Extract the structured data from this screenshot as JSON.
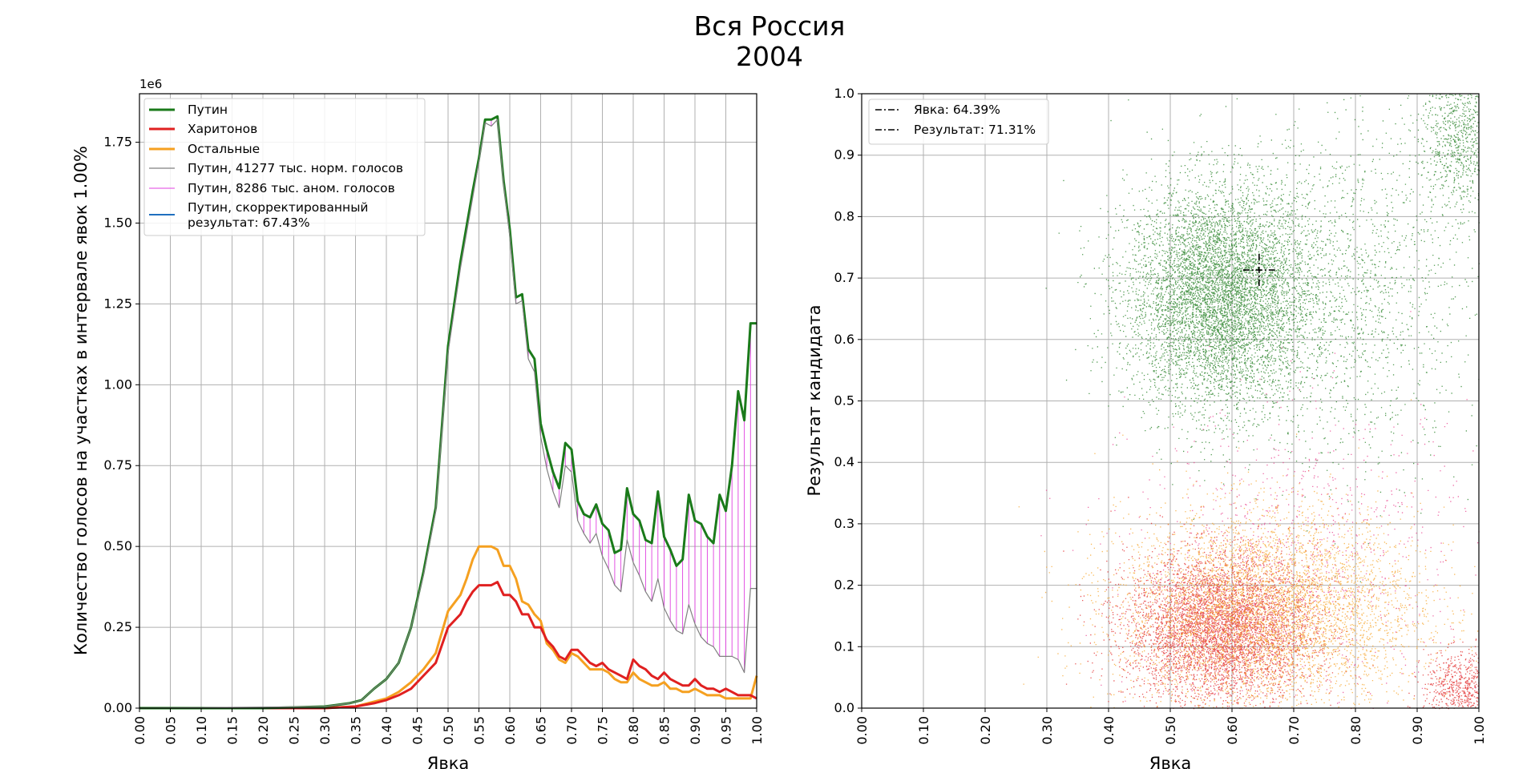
{
  "figure": {
    "title_line1": "Вся Россия",
    "title_line2": "2004",
    "colors": {
      "putin": "#1a7a1a",
      "kharitonov": "#e02020",
      "others": "#f5a020",
      "norm": "#808080",
      "anom": "#e040e0",
      "corrected": "#1f6fbf",
      "grid": "#b0b0b0"
    }
  },
  "chart_data": [
    {
      "type": "line",
      "xlabel": "Явка",
      "ylabel": "Количество голосов на участках в интервале явок 1.00%",
      "y_offset_label": "1e6",
      "xlim": [
        0,
        1
      ],
      "ylim": [
        0,
        1.9
      ],
      "grid": true,
      "legend_placement": "top-left",
      "x_ticks": [
        "0.00",
        "0.05",
        "0.10",
        "0.15",
        "0.20",
        "0.25",
        "0.30",
        "0.35",
        "0.40",
        "0.45",
        "0.50",
        "0.55",
        "0.60",
        "0.65",
        "0.70",
        "0.75",
        "0.80",
        "0.85",
        "0.90",
        "0.95",
        "1.00"
      ],
      "y_ticks": [
        "0.00",
        "0.25",
        "0.50",
        "0.75",
        "1.00",
        "1.25",
        "1.50",
        "1.75"
      ],
      "legend": [
        {
          "label": "Путин",
          "key": "putin"
        },
        {
          "label": "Харитонов",
          "key": "kharitonov"
        },
        {
          "label": "Остальные",
          "key": "others"
        },
        {
          "label": "Путин, 41277 тыс. норм. голосов",
          "key": "norm"
        },
        {
          "label": "Путин, 8286 тыс. аном. голосов",
          "key": "anom"
        },
        {
          "label": "Путин, скорректированный",
          "label2": "результат: 67.43%",
          "key": "corrected"
        }
      ],
      "series": {
        "putin": {
          "x": [
            0.0,
            0.1,
            0.2,
            0.3,
            0.32,
            0.34,
            0.36,
            0.38,
            0.4,
            0.42,
            0.44,
            0.46,
            0.48,
            0.5,
            0.52,
            0.54,
            0.55,
            0.56,
            0.57,
            0.58,
            0.59,
            0.6,
            0.61,
            0.62,
            0.63,
            0.64,
            0.65,
            0.66,
            0.67,
            0.68,
            0.69,
            0.7,
            0.71,
            0.72,
            0.73,
            0.74,
            0.75,
            0.76,
            0.77,
            0.78,
            0.79,
            0.8,
            0.81,
            0.82,
            0.83,
            0.84,
            0.85,
            0.86,
            0.87,
            0.88,
            0.89,
            0.9,
            0.91,
            0.92,
            0.93,
            0.94,
            0.95,
            0.96,
            0.97,
            0.98,
            0.99,
            1.0
          ],
          "y": [
            0,
            0,
            0,
            0.005,
            0.01,
            0.015,
            0.025,
            0.06,
            0.09,
            0.14,
            0.25,
            0.42,
            0.62,
            1.12,
            1.38,
            1.6,
            1.7,
            1.82,
            1.82,
            1.83,
            1.63,
            1.48,
            1.27,
            1.28,
            1.11,
            1.08,
            0.88,
            0.8,
            0.73,
            0.68,
            0.82,
            0.8,
            0.64,
            0.6,
            0.59,
            0.63,
            0.57,
            0.55,
            0.48,
            0.49,
            0.68,
            0.6,
            0.58,
            0.52,
            0.51,
            0.67,
            0.53,
            0.49,
            0.44,
            0.46,
            0.66,
            0.58,
            0.57,
            0.53,
            0.51,
            0.66,
            0.61,
            0.75,
            0.98,
            0.89,
            1.19,
            1.19
          ]
        },
        "kharitonov": {
          "x": [
            0.0,
            0.3,
            0.35,
            0.38,
            0.4,
            0.42,
            0.44,
            0.46,
            0.48,
            0.5,
            0.52,
            0.53,
            0.54,
            0.55,
            0.56,
            0.57,
            0.58,
            0.59,
            0.6,
            0.61,
            0.62,
            0.63,
            0.64,
            0.65,
            0.66,
            0.67,
            0.68,
            0.69,
            0.7,
            0.71,
            0.72,
            0.73,
            0.74,
            0.75,
            0.76,
            0.77,
            0.78,
            0.79,
            0.8,
            0.81,
            0.82,
            0.83,
            0.84,
            0.85,
            0.86,
            0.87,
            0.88,
            0.89,
            0.9,
            0.91,
            0.92,
            0.93,
            0.94,
            0.95,
            0.96,
            0.97,
            0.98,
            0.99,
            1.0
          ],
          "y": [
            0,
            0,
            0.005,
            0.015,
            0.025,
            0.04,
            0.06,
            0.1,
            0.14,
            0.25,
            0.29,
            0.33,
            0.36,
            0.38,
            0.38,
            0.38,
            0.39,
            0.35,
            0.35,
            0.33,
            0.29,
            0.29,
            0.25,
            0.25,
            0.21,
            0.19,
            0.16,
            0.15,
            0.18,
            0.18,
            0.16,
            0.14,
            0.13,
            0.14,
            0.12,
            0.11,
            0.1,
            0.09,
            0.15,
            0.13,
            0.12,
            0.1,
            0.09,
            0.11,
            0.09,
            0.08,
            0.07,
            0.07,
            0.09,
            0.07,
            0.06,
            0.06,
            0.05,
            0.06,
            0.05,
            0.04,
            0.04,
            0.04,
            0.03
          ]
        },
        "others": {
          "x": [
            0.0,
            0.3,
            0.35,
            0.38,
            0.4,
            0.42,
            0.44,
            0.46,
            0.48,
            0.5,
            0.52,
            0.53,
            0.54,
            0.55,
            0.56,
            0.57,
            0.58,
            0.59,
            0.6,
            0.61,
            0.62,
            0.63,
            0.64,
            0.65,
            0.66,
            0.67,
            0.68,
            0.69,
            0.7,
            0.71,
            0.72,
            0.73,
            0.74,
            0.75,
            0.76,
            0.77,
            0.78,
            0.79,
            0.8,
            0.81,
            0.82,
            0.83,
            0.84,
            0.85,
            0.86,
            0.87,
            0.88,
            0.89,
            0.9,
            0.91,
            0.92,
            0.93,
            0.94,
            0.95,
            0.96,
            0.97,
            0.98,
            0.99,
            1.0
          ],
          "y": [
            0,
            0,
            0.005,
            0.02,
            0.03,
            0.05,
            0.08,
            0.12,
            0.17,
            0.3,
            0.35,
            0.4,
            0.46,
            0.5,
            0.5,
            0.5,
            0.49,
            0.44,
            0.44,
            0.4,
            0.33,
            0.32,
            0.29,
            0.27,
            0.2,
            0.18,
            0.15,
            0.14,
            0.17,
            0.16,
            0.14,
            0.12,
            0.12,
            0.12,
            0.11,
            0.09,
            0.08,
            0.08,
            0.11,
            0.09,
            0.08,
            0.07,
            0.07,
            0.08,
            0.06,
            0.06,
            0.05,
            0.05,
            0.06,
            0.05,
            0.04,
            0.04,
            0.04,
            0.03,
            0.03,
            0.03,
            0.03,
            0.03,
            0.1
          ]
        },
        "norm": {
          "x": [
            0.0,
            0.3,
            0.32,
            0.34,
            0.36,
            0.38,
            0.4,
            0.42,
            0.44,
            0.46,
            0.48,
            0.5,
            0.52,
            0.54,
            0.55,
            0.56,
            0.57,
            0.58,
            0.59,
            0.6,
            0.61,
            0.62,
            0.63,
            0.64,
            0.65,
            0.66,
            0.67,
            0.68,
            0.69,
            0.7,
            0.71,
            0.72,
            0.73,
            0.74,
            0.75,
            0.76,
            0.77,
            0.78,
            0.79,
            0.8,
            0.81,
            0.82,
            0.83,
            0.84,
            0.85,
            0.86,
            0.87,
            0.88,
            0.89,
            0.9,
            0.91,
            0.92,
            0.93,
            0.94,
            0.95,
            0.96,
            0.97,
            0.98,
            0.99,
            1.0
          ],
          "y": [
            0,
            0.005,
            0.01,
            0.015,
            0.025,
            0.06,
            0.09,
            0.14,
            0.25,
            0.41,
            0.61,
            1.1,
            1.36,
            1.58,
            1.69,
            1.81,
            1.8,
            1.82,
            1.62,
            1.46,
            1.25,
            1.26,
            1.08,
            1.04,
            0.84,
            0.74,
            0.67,
            0.62,
            0.75,
            0.73,
            0.58,
            0.54,
            0.51,
            0.54,
            0.47,
            0.43,
            0.38,
            0.36,
            0.52,
            0.45,
            0.41,
            0.36,
            0.33,
            0.4,
            0.31,
            0.27,
            0.24,
            0.23,
            0.32,
            0.26,
            0.22,
            0.2,
            0.19,
            0.16,
            0.16,
            0.16,
            0.15,
            0.11,
            0.37,
            0.37
          ]
        }
      }
    },
    {
      "type": "scatter",
      "xlabel": "Явка",
      "ylabel": "Результат кандидата",
      "xlim": [
        0,
        1
      ],
      "ylim": [
        0,
        1
      ],
      "grid": true,
      "legend_placement": "top-left",
      "x_ticks": [
        "0.00",
        "0.10",
        "0.20",
        "0.30",
        "0.40",
        "0.50",
        "0.60",
        "0.70",
        "0.80",
        "0.90",
        "1.00"
      ],
      "y_ticks": [
        "0.0",
        "0.1",
        "0.2",
        "0.3",
        "0.4",
        "0.5",
        "0.6",
        "0.7",
        "0.8",
        "0.9",
        "1.0"
      ],
      "legend": [
        {
          "label": "Явка: 64.39%"
        },
        {
          "label": "Результат: 71.31%"
        }
      ],
      "marker": {
        "x": 0.6439,
        "y": 0.7131
      },
      "clusters": [
        {
          "name": "putin",
          "color": "#1a7a1a",
          "cx": 0.58,
          "cy": 0.67,
          "sx": 0.075,
          "sy": 0.09,
          "count": 9000
        },
        {
          "name": "putin",
          "color": "#1a7a1a",
          "cx": 0.8,
          "cy": 0.68,
          "sx": 0.1,
          "sy": 0.14,
          "count": 1500
        },
        {
          "name": "putin",
          "color": "#1a7a1a",
          "cx": 0.97,
          "cy": 0.93,
          "sx": 0.035,
          "sy": 0.06,
          "count": 900
        },
        {
          "name": "kharitonov",
          "color": "#e02020",
          "cx": 0.58,
          "cy": 0.13,
          "sx": 0.075,
          "sy": 0.06,
          "count": 7000
        },
        {
          "name": "kharitonov",
          "color": "#e02020",
          "cx": 0.97,
          "cy": 0.03,
          "sx": 0.03,
          "sy": 0.03,
          "count": 700
        },
        {
          "name": "others",
          "color": "#f5a020",
          "cx": 0.66,
          "cy": 0.16,
          "sx": 0.12,
          "sy": 0.08,
          "count": 6000
        },
        {
          "name": "pink",
          "color": "#e83a8a",
          "cx": 0.72,
          "cy": 0.25,
          "sx": 0.14,
          "sy": 0.12,
          "count": 900
        }
      ]
    }
  ]
}
